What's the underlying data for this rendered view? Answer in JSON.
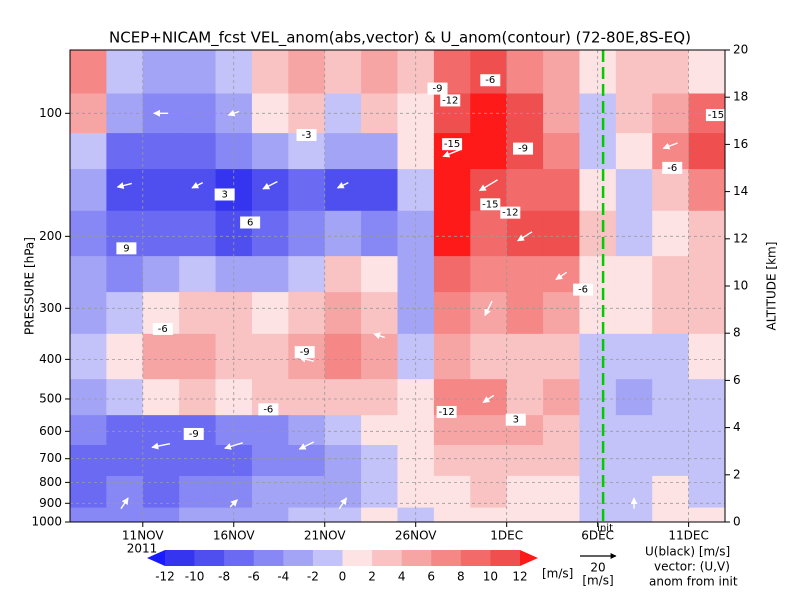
{
  "chart_data": {
    "type": "heatmap",
    "title": "NCEP+NICAM_fcst VEL_anom(abs,vector) & U_anom(contour)   (72-80E,8S-EQ)",
    "y_label": "PRESSURE [hPa]",
    "y2_label": "ALTITUDE [km]",
    "year_label": "2011",
    "xlim": [
      7,
      43
    ],
    "xticks": [
      {
        "value": 11,
        "label": "11NOV"
      },
      {
        "value": 16,
        "label": "16NOV"
      },
      {
        "value": 21,
        "label": "21NOV"
      },
      {
        "value": 26,
        "label": "26NOV"
      },
      {
        "value": 31,
        "label": "1DEC"
      },
      {
        "value": 36,
        "label": "6DEC"
      },
      {
        "value": 41,
        "label": "11DEC"
      }
    ],
    "ylim": [
      1000,
      70
    ],
    "log_y": true,
    "yticks": [
      100,
      200,
      300,
      400,
      500,
      600,
      700,
      800,
      900,
      1000
    ],
    "y2lim": [
      0,
      20
    ],
    "y2ticks": [
      0,
      2,
      4,
      6,
      8,
      10,
      12,
      14,
      16,
      18,
      20
    ],
    "grid": true,
    "x": [
      8,
      10,
      12,
      14,
      16,
      18,
      20,
      22,
      24,
      26,
      28,
      30,
      32,
      34,
      36,
      38,
      40,
      42
    ],
    "levels": [
      80,
      100,
      125,
      150,
      200,
      250,
      300,
      400,
      500,
      600,
      700,
      850,
      1000
    ],
    "z": [
      [
        6,
        -2,
        -4,
        -3,
        -2,
        2,
        4,
        2,
        4,
        2,
        8,
        10,
        6,
        4,
        0,
        2,
        2,
        0
      ],
      [
        4,
        -4,
        -6,
        -6,
        -4,
        0,
        2,
        -2,
        2,
        0,
        10,
        12,
        10,
        4,
        -2,
        2,
        4,
        8
      ],
      [
        -2,
        -8,
        -8,
        -8,
        -6,
        -4,
        -2,
        -4,
        -4,
        0,
        12,
        12,
        10,
        6,
        -2,
        0,
        6,
        10
      ],
      [
        -4,
        -10,
        -10,
        -10,
        -12,
        -10,
        -8,
        -10,
        -10,
        -2,
        12,
        10,
        8,
        8,
        0,
        -2,
        2,
        6
      ],
      [
        -6,
        -8,
        -8,
        -8,
        -10,
        -8,
        -6,
        -4,
        -6,
        -4,
        12,
        8,
        10,
        10,
        2,
        -2,
        0,
        2
      ],
      [
        -4,
        -6,
        -4,
        -2,
        -4,
        -4,
        -2,
        2,
        0,
        -4,
        8,
        6,
        6,
        6,
        0,
        0,
        2,
        2
      ],
      [
        -4,
        -2,
        0,
        2,
        2,
        0,
        2,
        4,
        2,
        -4,
        6,
        4,
        6,
        4,
        0,
        0,
        2,
        2
      ],
      [
        -2,
        0,
        4,
        4,
        2,
        2,
        4,
        6,
        4,
        -2,
        4,
        2,
        2,
        2,
        -2,
        -2,
        -2,
        0
      ],
      [
        -4,
        -2,
        0,
        2,
        0,
        2,
        2,
        2,
        2,
        0,
        6,
        6,
        2,
        4,
        -2,
        -4,
        -2,
        -2
      ],
      [
        -6,
        -8,
        -8,
        -8,
        -6,
        -6,
        -4,
        -2,
        0,
        0,
        4,
        4,
        4,
        2,
        -2,
        -2,
        -2,
        -2
      ],
      [
        -8,
        -8,
        -8,
        -8,
        -8,
        -6,
        -6,
        -4,
        -2,
        0,
        2,
        2,
        2,
        2,
        -2,
        -2,
        -2,
        -2
      ],
      [
        -8,
        -6,
        -8,
        -6,
        -6,
        -4,
        -4,
        -4,
        -2,
        0,
        0,
        2,
        0,
        0,
        -2,
        -2,
        0,
        -2
      ],
      [
        -6,
        -6,
        -6,
        -4,
        -4,
        -4,
        -2,
        -2,
        0,
        -2,
        0,
        0,
        0,
        0,
        -2,
        -2,
        0,
        0
      ]
    ],
    "colorbar": {
      "levels": [
        -12,
        -10,
        -8,
        -6,
        -4,
        -2,
        0,
        2,
        4,
        6,
        8,
        10,
        12
      ],
      "colors": [
        "#1a1aff",
        "#3535f0",
        "#4f4fef",
        "#6a6af2",
        "#8787f5",
        "#a4a4f7",
        "#c3c3fa",
        "#fde3e3",
        "#fac3c3",
        "#f7a4a4",
        "#f58787",
        "#f26a6a",
        "#ef4f4f",
        "#ff1a1a"
      ],
      "unit": "[m/s]"
    },
    "contour_labels": [
      {
        "x": 27.2,
        "p": 87,
        "value": -9
      },
      {
        "x": 27.9,
        "p": 93,
        "value": -12
      },
      {
        "x": 28.0,
        "p": 119,
        "value": -15
      },
      {
        "x": 30.1,
        "p": 167,
        "value": -15
      },
      {
        "x": 31.2,
        "p": 175,
        "value": -12
      },
      {
        "x": 31.9,
        "p": 122,
        "value": -9
      },
      {
        "x": 30.1,
        "p": 83,
        "value": -6
      },
      {
        "x": 19.9,
        "p": 384,
        "value": -9
      },
      {
        "x": 12.1,
        "p": 337,
        "value": -6
      },
      {
        "x": 13.8,
        "p": 609,
        "value": -9
      },
      {
        "x": 31.5,
        "p": 562,
        "value": 3
      },
      {
        "x": 27.7,
        "p": 538,
        "value": -12
      },
      {
        "x": 17.9,
        "p": 530,
        "value": -6
      },
      {
        "x": 10.1,
        "p": 214,
        "value": 9
      },
      {
        "x": 16.9,
        "p": 185,
        "value": 6
      },
      {
        "x": 15.5,
        "p": 158,
        "value": 3
      },
      {
        "x": 35.2,
        "p": 270,
        "value": -6
      },
      {
        "x": 42.5,
        "p": 101,
        "value": -15
      },
      {
        "x": 40.1,
        "p": 136,
        "value": -6
      },
      {
        "x": 20.0,
        "p": 113,
        "value": -3
      }
    ],
    "vectors": [
      {
        "x": 10,
        "p": 150,
        "u": -8,
        "v": -2
      },
      {
        "x": 14,
        "p": 150,
        "u": -6,
        "v": -3
      },
      {
        "x": 18,
        "p": 150,
        "u": -8,
        "v": -4
      },
      {
        "x": 22,
        "p": 150,
        "u": -6,
        "v": -3
      },
      {
        "x": 12,
        "p": 100,
        "u": -8,
        "v": 0
      },
      {
        "x": 16,
        "p": 100,
        "u": -6,
        "v": -2
      },
      {
        "x": 28,
        "p": 125,
        "u": -10,
        "v": -4
      },
      {
        "x": 30,
        "p": 150,
        "u": -10,
        "v": -6
      },
      {
        "x": 32,
        "p": 200,
        "u": -8,
        "v": -5
      },
      {
        "x": 34,
        "p": 250,
        "u": -6,
        "v": -4
      },
      {
        "x": 30,
        "p": 300,
        "u": -4,
        "v": -8
      },
      {
        "x": 24,
        "p": 350,
        "u": -6,
        "v": 2
      },
      {
        "x": 20,
        "p": 400,
        "u": -8,
        "v": 2
      },
      {
        "x": 12,
        "p": 650,
        "u": -10,
        "v": -2
      },
      {
        "x": 16,
        "p": 650,
        "u": -10,
        "v": -3
      },
      {
        "x": 20,
        "p": 650,
        "u": -8,
        "v": -4
      },
      {
        "x": 10,
        "p": 900,
        "u": 4,
        "v": 6
      },
      {
        "x": 16,
        "p": 900,
        "u": 4,
        "v": 4
      },
      {
        "x": 22,
        "p": 900,
        "u": 4,
        "v": 6
      },
      {
        "x": 40,
        "p": 120,
        "u": -8,
        "v": -3
      },
      {
        "x": 30,
        "p": 500,
        "u": -6,
        "v": -4
      },
      {
        "x": 38,
        "p": 900,
        "u": 0,
        "v": 6
      }
    ],
    "vector_key": {
      "value": 20,
      "unit": "[m/s]"
    },
    "init_line": {
      "x": 36.3,
      "label": "init",
      "color": "#00cc00"
    },
    "notes": [
      "U(black) [m/s]",
      "vector: (U,V)",
      "anom from init"
    ]
  }
}
